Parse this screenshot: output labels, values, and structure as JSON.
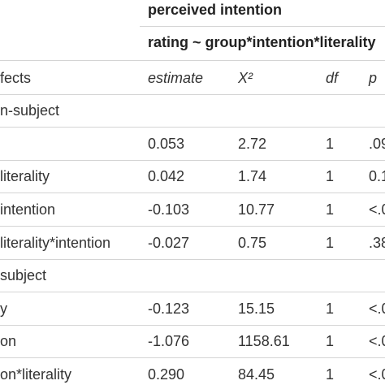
{
  "table": {
    "title": "perceived intention",
    "model": "rating ~ group*intention*literality",
    "columns": {
      "effects": "fects",
      "estimate": "estimate",
      "chi2": "X²",
      "df": "df",
      "p": "p"
    },
    "sections": [
      {
        "label": "n-subject"
      },
      {
        "label": "subject"
      }
    ],
    "rows": [
      {
        "effect": "",
        "estimate": "0.053",
        "chi2": "2.72",
        "df": "1",
        "p": ".09"
      },
      {
        "effect": "literality",
        "estimate": "0.042",
        "chi2": "1.74",
        "df": "1",
        "p": "0.1"
      },
      {
        "effect": "intention",
        "estimate": "-0.103",
        "chi2": "10.77",
        "df": "1",
        "p": "<.0"
      },
      {
        "effect": "literality*intention",
        "estimate": "-0.027",
        "chi2": "0.75",
        "df": "1",
        "p": ".38"
      },
      {
        "effect": "y",
        "estimate": "-0.123",
        "chi2": "15.15",
        "df": "1",
        "p": "<.0"
      },
      {
        "effect": "on",
        "estimate": "-1.076",
        "chi2": "1158.61",
        "df": "1",
        "p": "<.0"
      },
      {
        "effect": "on*literality",
        "estimate": "0.290",
        "chi2": "84.45",
        "df": "1",
        "p": "<.0"
      }
    ]
  }
}
